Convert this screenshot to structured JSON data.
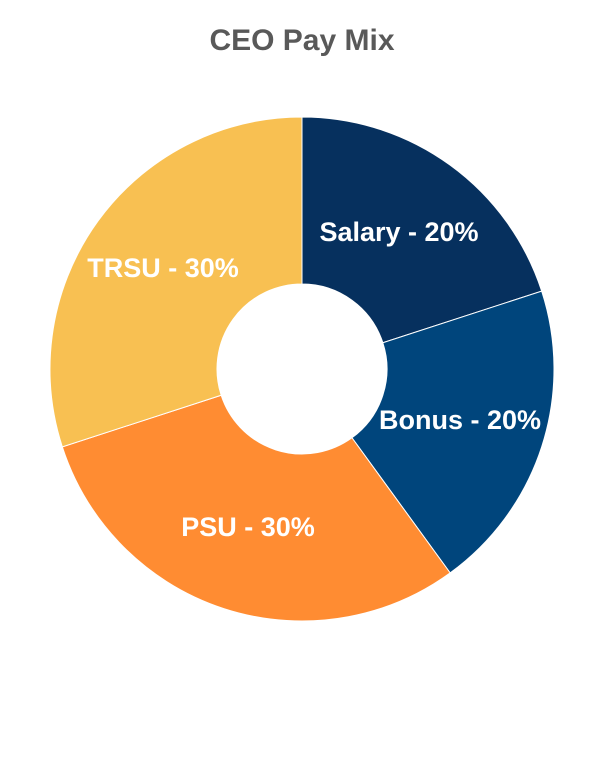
{
  "chart_data": {
    "type": "pie",
    "title": "CEO Pay Mix",
    "donut": true,
    "slices": [
      {
        "label": "Salary",
        "value": 20,
        "color": "#06305E",
        "data_label": "Salary - 20%"
      },
      {
        "label": "Bonus",
        "value": 20,
        "color": "#00457C",
        "data_label": "Bonus - 20%"
      },
      {
        "label": "PSU",
        "value": 30,
        "color": "#FF8C32",
        "data_label": "PSU - 30%"
      },
      {
        "label": "TRSU",
        "value": 30,
        "color": "#F8C052",
        "data_label": "TRSU - 30%"
      }
    ],
    "legend": "none",
    "start_angle": "12 o'clock",
    "direction": "clockwise"
  }
}
